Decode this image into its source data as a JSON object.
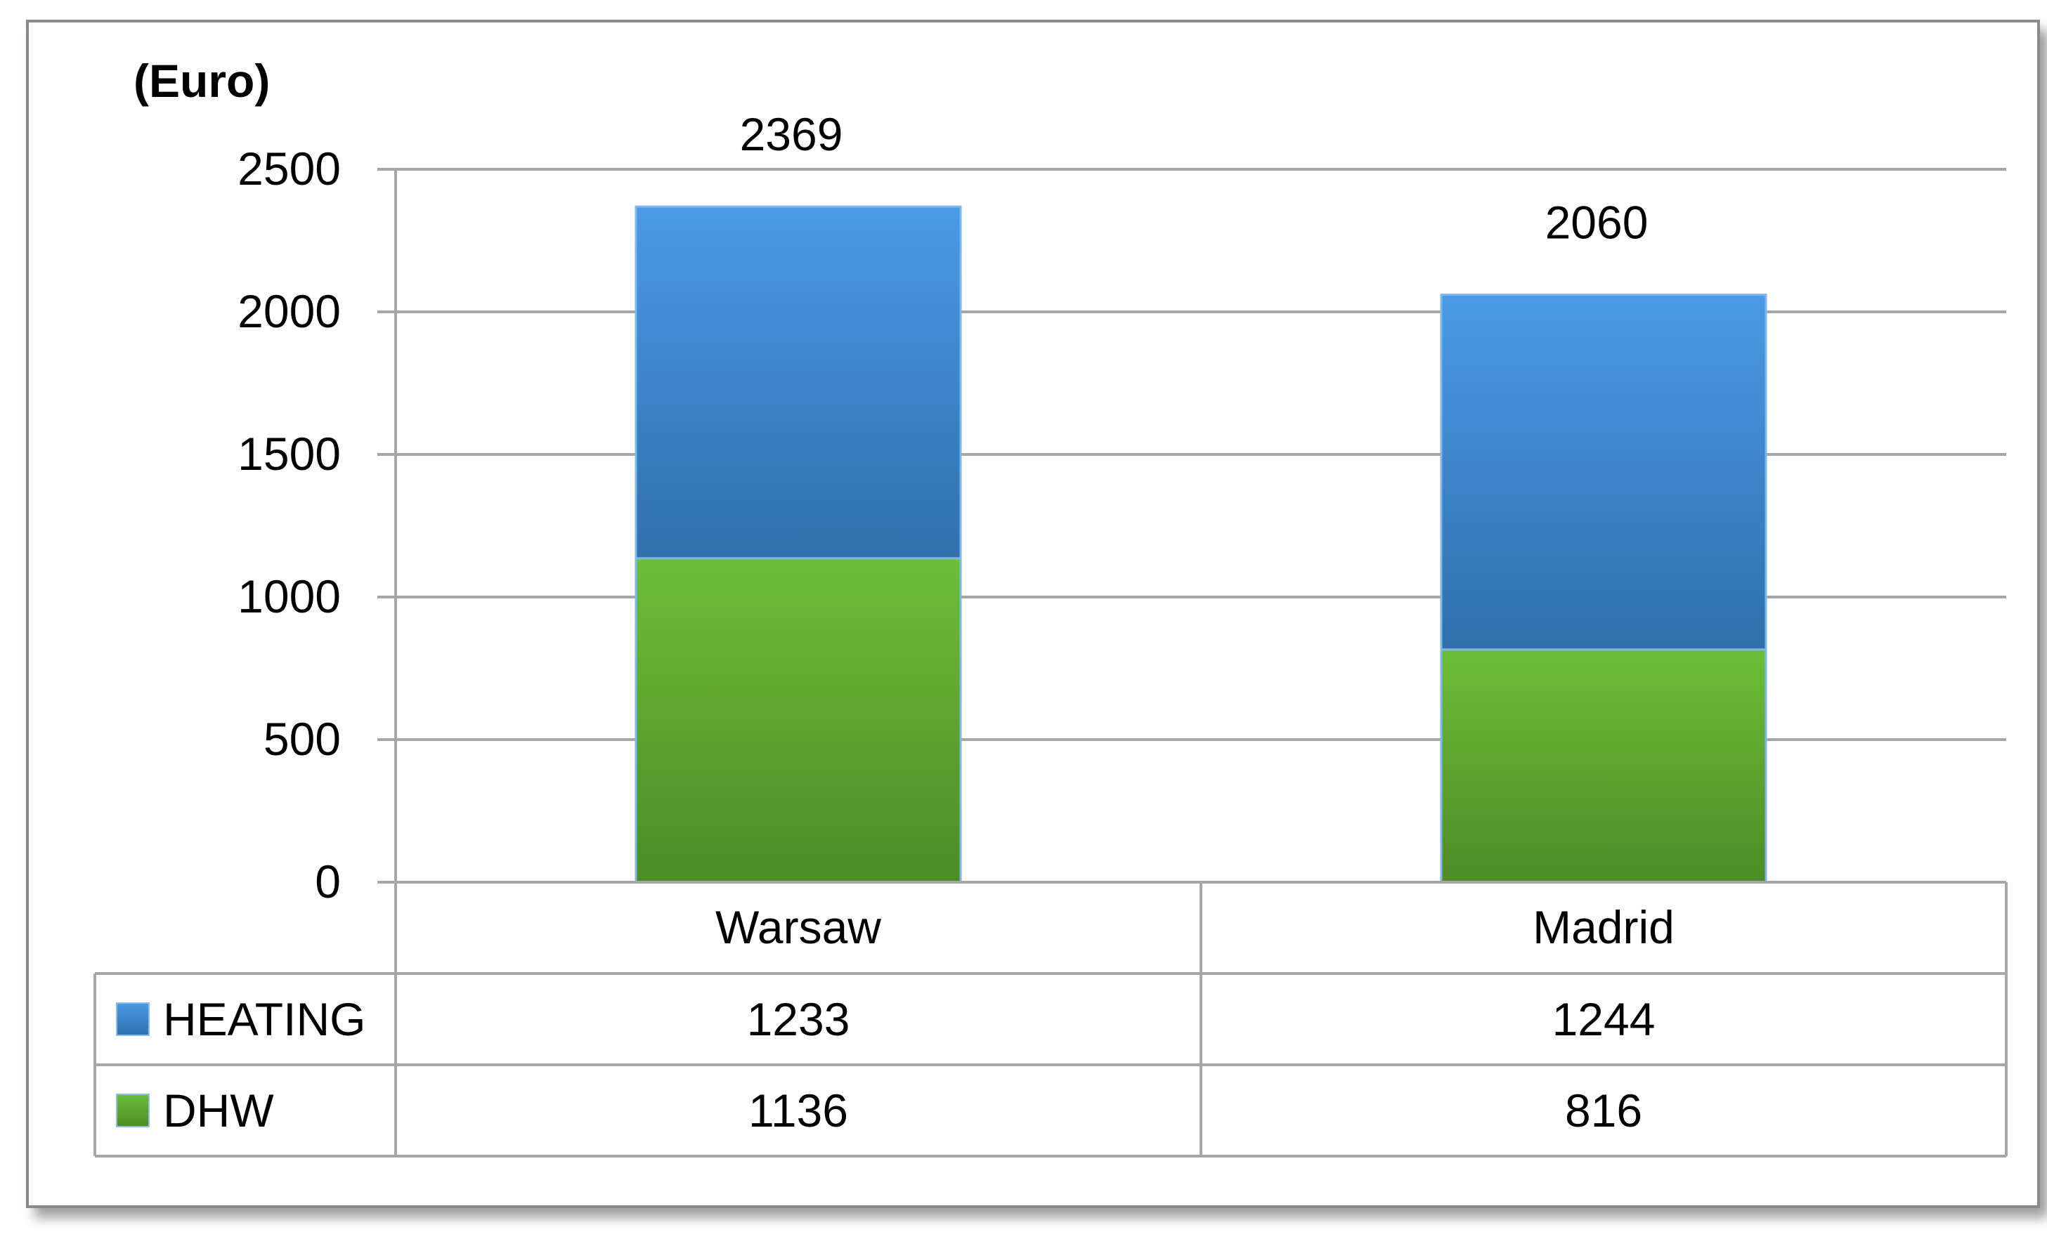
{
  "chart_data": {
    "type": "bar",
    "stacked": true,
    "unit_label": "(Euro)",
    "categories": [
      "Warsaw",
      "Madrid"
    ],
    "series": [
      {
        "name": "HEATING",
        "values": [
          1233,
          1244
        ],
        "color": "#3b88d4"
      },
      {
        "name": "DHW",
        "values": [
          1136,
          816
        ],
        "color": "#5aa632"
      }
    ],
    "totals": [
      2369,
      2060
    ],
    "ylim": [
      0,
      2500
    ],
    "yticks": [
      0,
      500,
      1000,
      1500,
      2000,
      2500
    ],
    "grid": true,
    "legend": "data-table"
  }
}
